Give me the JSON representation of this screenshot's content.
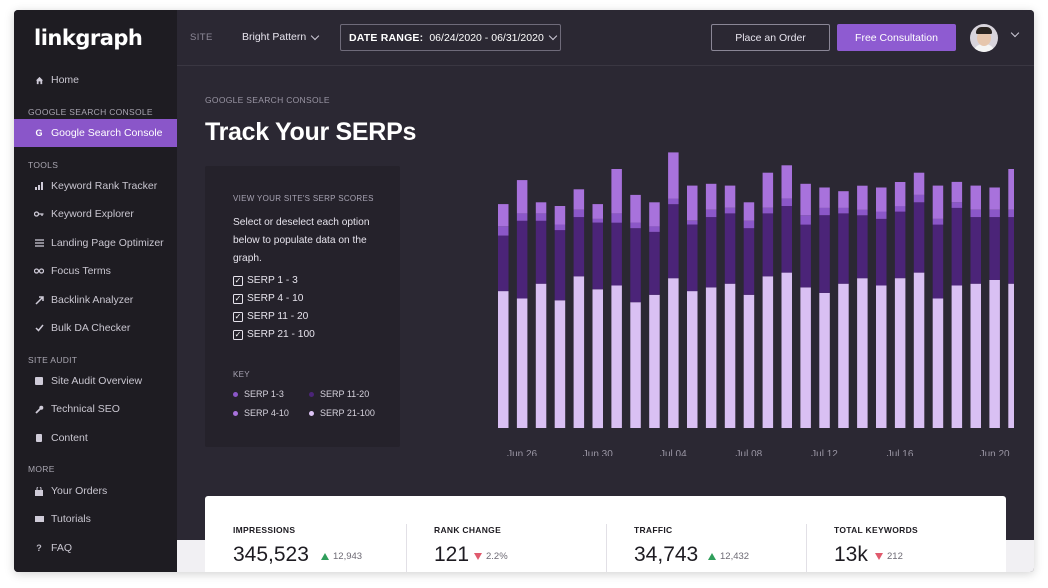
{
  "sidebar": {
    "logo": "linkgraph",
    "home": "Home",
    "sections": {
      "gsc": "GOOGLE SEARCH CONSOLE",
      "tools": "TOOLS",
      "site_audit": "SITE AUDIT",
      "more": "MORE"
    },
    "gsc_items": [
      {
        "label": "Google Search Console",
        "icon": "G"
      }
    ],
    "tool_items": [
      {
        "label": "Keyword Rank Tracker",
        "icon": "rank-tracker-icon"
      },
      {
        "label": "Keyword Explorer",
        "icon": "key-icon"
      },
      {
        "label": "Landing Page Optimizer",
        "icon": "menu-icon"
      },
      {
        "label": "Focus Terms",
        "icon": "link-icon"
      },
      {
        "label": "Backlink Analyzer",
        "icon": "backlink-icon"
      },
      {
        "label": "Bulk DA Checker",
        "icon": "check-icon"
      }
    ],
    "audit_items": [
      {
        "label": "Site Audit Overview",
        "icon": "overview-icon"
      },
      {
        "label": "Technical SEO",
        "icon": "wrench-icon"
      },
      {
        "label": "Content",
        "icon": "content-icon"
      }
    ],
    "more_items": [
      {
        "label": "Your Orders",
        "icon": "bag-icon"
      },
      {
        "label": "Tutorials",
        "icon": "tutorial-icon"
      },
      {
        "label": "FAQ",
        "icon": "question-icon"
      }
    ]
  },
  "topbar": {
    "site_label": "SITE",
    "site_value": "Bright Pattern",
    "date_label": "DATE RANGE:",
    "date_value": "06/24/2020 - 06/31/2020",
    "place_order": "Place an Order",
    "free_consult": "Free Consultation"
  },
  "main": {
    "crumb": "GOOGLE SEARCH CONSOLE",
    "title": "Track Your SERPs",
    "panel": {
      "heading": "VIEW YOUR SITE'S SERP SCORES",
      "description": "Select or deselect each option below to populate data on the graph.",
      "options": [
        "SERP 1 - 3",
        "SERP 4 - 10",
        "SERP 11 - 20",
        "SERP 21 - 100"
      ],
      "key_label": "KEY",
      "key": [
        {
          "label": "SERP 1-3",
          "color": "#8b57c8"
        },
        {
          "label": "SERP 11-20",
          "color": "#4b2478"
        },
        {
          "label": "SERP 4-10",
          "color": "#a872dc"
        },
        {
          "label": "SERP 21-100",
          "color": "#ddc4f5"
        }
      ]
    }
  },
  "chart_data": {
    "type": "bar",
    "stacked": true,
    "x_tick_labels": [
      "Jun 26",
      "Jun 30",
      "Jul 04",
      "Jul 08",
      "Jul 12",
      "Jul 16",
      "Jun 20"
    ],
    "bar_count": 28,
    "colors": {
      "top": "#8b57c8",
      "top_light": "#a872dc",
      "mid": "#4b2478",
      "base": "#d9c0f3"
    },
    "series": [
      {
        "values": [
          12,
          18,
          6,
          10,
          11,
          8,
          24,
          15,
          13,
          25,
          19,
          14,
          12,
          10,
          19,
          18,
          17,
          11,
          9,
          13,
          13,
          13,
          12,
          18,
          11,
          13,
          12,
          22
        ]
      },
      {
        "values": [
          5,
          4,
          4,
          3,
          4,
          2,
          5,
          3,
          3,
          3,
          2,
          4,
          3,
          4,
          3,
          4,
          5,
          4,
          3,
          3,
          4,
          3,
          4,
          3,
          3,
          4,
          4,
          4
        ]
      },
      {
        "values": [
          30,
          42,
          34,
          38,
          32,
          36,
          34,
          40,
          34,
          40,
          36,
          38,
          38,
          36,
          34,
          36,
          34,
          42,
          38,
          34,
          36,
          36,
          38,
          40,
          42,
          36,
          34,
          36
        ]
      },
      {
        "values": [
          74,
          70,
          78,
          69,
          82,
          75,
          77,
          68,
          72,
          81,
          74,
          76,
          78,
          72,
          82,
          84,
          76,
          73,
          78,
          81,
          77,
          81,
          84,
          70,
          77,
          78,
          80,
          78
        ]
      }
    ]
  },
  "stats": [
    {
      "label": "IMPRESSIONS",
      "value": "345,523",
      "delta": "12,943",
      "direction": "up"
    },
    {
      "label": "RANK CHANGE",
      "value": "121",
      "delta": "2.2%",
      "direction": "down"
    },
    {
      "label": "TRAFFIC",
      "value": "34,743",
      "delta": "12,432",
      "direction": "up"
    },
    {
      "label": "TOTAL KEYWORDS",
      "value": "13k",
      "delta": "212",
      "direction": "down"
    }
  ]
}
